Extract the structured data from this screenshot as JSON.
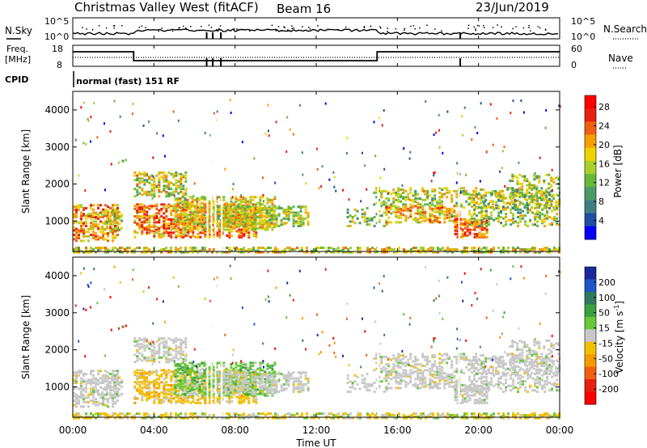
{
  "header": {
    "title": "Christmas Valley West (fitACF)",
    "beam": "Beam 16",
    "date": "23/Jun/2019"
  },
  "status_panel": {
    "nsky_label": "N.Sky",
    "nsky_ticks": [
      "10^5",
      "10^0"
    ],
    "nsearch_label": "N.Search",
    "nsearch_ticks": [
      "10^5",
      "10^0"
    ],
    "freq_label": "Freq.",
    "freq_unit": "[MHz]",
    "freq_ticks": [
      "18",
      "8"
    ],
    "nave_label": "Nave",
    "nave_ticks": [
      "60",
      "0"
    ],
    "cpid_label": "CPID",
    "cpid_text": "normal (fast) 151 RF"
  },
  "chart_data": [
    {
      "type": "heatmap",
      "name": "power",
      "ylabel": "Slant Range [km]",
      "yticks": [
        "1000",
        "2000",
        "3000",
        "4000"
      ],
      "ylim": [
        180,
        4500
      ],
      "colorbar_label": "Power [dB]",
      "colorbar_ticks": [
        "4",
        "8",
        "12",
        "16",
        "20",
        "24",
        "28"
      ],
      "colorbar_range": [
        0,
        30
      ],
      "colors": [
        "#0000ff",
        "#1f4fa0",
        "#3d7f7f",
        "#4c9a6a",
        "#66b83a",
        "#a8cf2a",
        "#f0d000",
        "#f5a000",
        "#f06010",
        "#e82010",
        "#ff0000"
      ]
    },
    {
      "type": "heatmap",
      "name": "velocity",
      "ylabel": "Slant Range [km]",
      "yticks": [
        "1000",
        "2000",
        "3000",
        "4000"
      ],
      "ylim": [
        180,
        4500
      ],
      "colorbar_label": "Velocity [m s^-1]",
      "colorbar_ticks": [
        "200",
        "100",
        "50",
        "15",
        "-15",
        "-50",
        "-100",
        "-200"
      ],
      "colorbar_range": [
        -250,
        250
      ],
      "colors": [
        "#1a2a9a",
        "#1f55c8",
        "#2f7a5a",
        "#3aa040",
        "#66c83a",
        "#c8c8c8",
        "#f0c000",
        "#f59a00",
        "#f06010",
        "#e82010",
        "#ff0000"
      ]
    }
  ],
  "xaxis": {
    "ticks": [
      "00:00",
      "04:00",
      "08:00",
      "12:00",
      "16:00",
      "20:00",
      "00:00"
    ],
    "label": "Time UT"
  }
}
